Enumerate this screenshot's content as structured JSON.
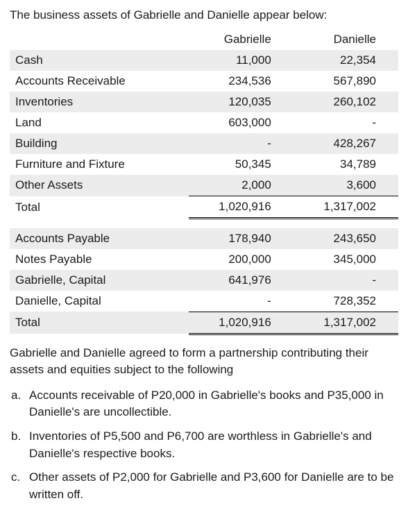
{
  "intro": "The business assets of Gabrielle and Danielle appear below:",
  "columns": {
    "label": "",
    "g": "Gabrielle",
    "d": "Danielle"
  },
  "assets": [
    {
      "label": "Cash",
      "g": "11,000",
      "d": "22,354",
      "shaded": true
    },
    {
      "label": "Accounts Receivable",
      "g": "234,536",
      "d": "567,890",
      "shaded": false
    },
    {
      "label": "Inventories",
      "g": "120,035",
      "d": "260,102",
      "shaded": true
    },
    {
      "label": "Land",
      "g": "603,000",
      "d": "-",
      "shaded": false
    },
    {
      "label": "Building",
      "g": "-",
      "d": "428,267",
      "shaded": true
    },
    {
      "label": "Furniture and Fixture",
      "g": "50,345",
      "d": "34,789",
      "shaded": false
    },
    {
      "label": "Other Assets",
      "g": "2,000",
      "d": "3,600",
      "shaded": true
    }
  ],
  "assets_total": {
    "label": "Total",
    "g": "1,020,916",
    "d": "1,317,002"
  },
  "liabilities": [
    {
      "label": "Accounts Payable",
      "g": "178,940",
      "d": "243,650",
      "shaded": true
    },
    {
      "label": "Notes Payable",
      "g": "200,000",
      "d": "345,000",
      "shaded": false
    },
    {
      "label": "Gabrielle, Capital",
      "g": "641,976",
      "d": "-",
      "shaded": true
    },
    {
      "label": "Danielle, Capital",
      "g": "-",
      "d": "728,352",
      "shaded": false
    }
  ],
  "liabilities_total": {
    "label": "Total",
    "g": "1,020,916",
    "d": "1,317,002"
  },
  "after_para": "Gabrielle and Danielle agreed to form a partnership contributing their assets and equities subject to the following",
  "items": [
    {
      "marker": "a.",
      "text": "Accounts receivable of P20,000 in Gabrielle's books and P35,000 in Danielle's are uncollectible."
    },
    {
      "marker": "b.",
      "text": "Inventories of P5,500 and P6,700 are worthless in Gabrielle's and Danielle's respective books."
    },
    {
      "marker": "c.",
      "text": "Other assets of P2,000 for Gabrielle and P3,600 for Danielle are to be written off."
    }
  ],
  "colors": {
    "shaded_bg": "#ececec",
    "text": "#1a1a1a",
    "background": "#ffffff",
    "rule": "#000000"
  }
}
